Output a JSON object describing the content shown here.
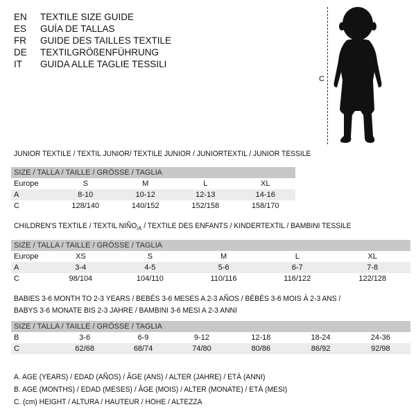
{
  "languages": [
    {
      "code": "EN",
      "text": "TEXTILE SIZE GUIDE"
    },
    {
      "code": "ES",
      "text": "GUÍA DE TALLAS"
    },
    {
      "code": "FR",
      "text": "GUIDE DES TAILLES TEXTILE"
    },
    {
      "code": "DE",
      "text": "TEXTILGRÖßENFÜHRUNG"
    },
    {
      "code": "IT",
      "text": "GUIDA ALLE TAGLIE TESSILI"
    }
  ],
  "figure": {
    "label": "C",
    "icon": "child-silhouette"
  },
  "junior": {
    "title": "JUNIOR TEXTILE / TEXTIL JUNIOR/ TEXTILE JUNIOR / JUNIORTEXTIL / JUNIOR TESSILE",
    "header": "SIZE / TALLA / TAILLE / GRÖSSE / TAGLIA",
    "rows": [
      {
        "label": "Europe",
        "values": [
          "S",
          "M",
          "L",
          "XL"
        ]
      },
      {
        "label": "A",
        "values": [
          "8-10",
          "10-12",
          "12-13",
          "14-16"
        ]
      },
      {
        "label": "C",
        "values": [
          "128/140",
          "140/152",
          "152/158",
          "158/170"
        ]
      }
    ]
  },
  "children": {
    "title_a": "CHILDREN'S TEXTILE / TEXTIL NIÑO",
    "title_sub": "/A",
    "title_b": " / TEXTILE DES ENFANTS / KINDERTEXTIL / BAMBINI TESSILE",
    "header": "SIZE / TALLA / TAILLE / GRÖSSE / TAGLIA",
    "rows": [
      {
        "label": "Europe",
        "values": [
          "XS",
          "S",
          "M",
          "L",
          "XL"
        ]
      },
      {
        "label": "A",
        "values": [
          "3-4",
          "4-5",
          "5-6",
          "6-7",
          "7-8"
        ]
      },
      {
        "label": "C",
        "values": [
          "98/104",
          "104/110",
          "110/116",
          "116/122",
          "122/128"
        ]
      }
    ]
  },
  "babies": {
    "title_1": "BABIES 3-6 MONTH TO 2-3 YEARS / BEBÉS 3-6 MESES A 2-3 AÑOS / BÉBÉS 3-6 MOIS À 2-3 ANS /",
    "title_2": "BABYS 3-6 MONATE BIS 2-3 JAHRE / BAMBINI 3-6 MESI A 2-3 ANNI",
    "header": "SIZE / TALLA / TAILLE / GRÖSSE / TAGLIA",
    "rows": [
      {
        "label": "B",
        "values": [
          "3-6",
          "6-9",
          "9-12",
          "12-18",
          "18-24",
          "24-36"
        ]
      },
      {
        "label": "C",
        "values": [
          "62/68",
          "68/74",
          "74/80",
          "80/86",
          "86/92",
          "92/98"
        ]
      }
    ]
  },
  "legend": [
    "A. AGE (YEARS) / EDAD (AÑOS) / ÂGE (ANS) / ALTER (JAHRE) / ETÀ (ANNI)",
    "B. AGE (MONTHS) / EDAD (MESES) / ÂGE (MOIS) / ALTER (MONATE) / ETÀ (MESI)",
    "C. (cm) HEIGHT / ALTURA / HAUTEUR / HÖHE / ALTEZZA"
  ]
}
